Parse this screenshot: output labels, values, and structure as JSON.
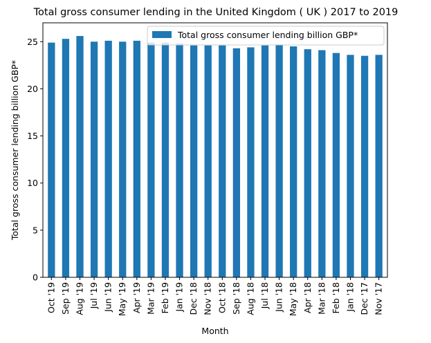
{
  "chart_data": {
    "type": "bar",
    "title": "Total gross consumer lending in the United Kingdom ( UK ) 2017 to 2019",
    "xlabel": "Month",
    "ylabel": "Total gross consumer lending billion GBP*",
    "ylim": [
      0,
      27.0
    ],
    "yticks": [
      0,
      5,
      10,
      15,
      20,
      25
    ],
    "grid": false,
    "legend_position": "top-right",
    "bar_color": "#1f77b4",
    "categories": [
      "Oct '19",
      "Sep '19",
      "Aug '19",
      "Jul '19",
      "Jun '19",
      "May '19",
      "Apr '19",
      "Mar '19",
      "Feb '19",
      "Jan '19",
      "Dec '18",
      "Nov '18",
      "Oct '18",
      "Sep '18",
      "Aug '18",
      "Jul '18",
      "Jun '18",
      "May '18",
      "Apr '18",
      "Mar '18",
      "Feb '18",
      "Jan '18",
      "Dec '17",
      "Nov '17"
    ],
    "series": [
      {
        "name": "Total gross consumer lending billion GBP*",
        "values": [
          24.9,
          25.3,
          25.6,
          25.0,
          25.1,
          25.0,
          25.1,
          24.9,
          24.9,
          24.8,
          24.6,
          24.6,
          24.6,
          24.3,
          24.4,
          24.6,
          24.7,
          24.5,
          24.2,
          24.1,
          23.8,
          23.6,
          23.5,
          23.6
        ]
      }
    ]
  }
}
